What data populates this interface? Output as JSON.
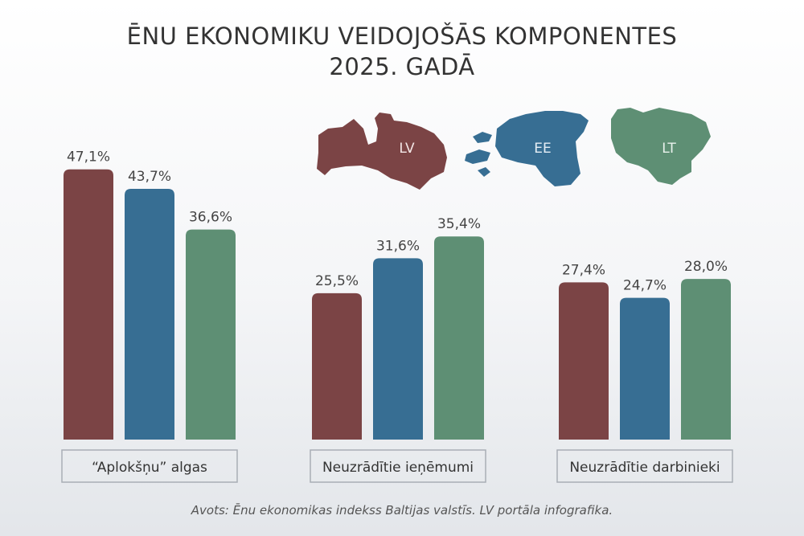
{
  "title_line1": "ĒNU EKONOMIKU VEIDOJOŠĀS KOMPONENTES",
  "title_line2": "2025. GADĀ",
  "source": "Avots: Ēnu ekonomikas indekss Baltijas valstīs. LV portāla infografika.",
  "colors": {
    "LV": "#7b4445",
    "EE": "#376e93",
    "LT": "#5e8f74"
  },
  "chart_data": {
    "type": "bar",
    "categories": [
      "“Aplokšņu” algas",
      "Neuzrādītie ieņēmumi",
      "Neuzrādītie darbinieki"
    ],
    "series": [
      {
        "name": "LV",
        "values": [
          47.1,
          25.5,
          27.4
        ],
        "labels": [
          "47,1%",
          "25,5%",
          "27,4%"
        ],
        "color": "#7b4445"
      },
      {
        "name": "EE",
        "values": [
          43.7,
          31.6,
          24.7
        ],
        "labels": [
          "43,7%",
          "31,6%",
          "24,7%"
        ],
        "color": "#376e93"
      },
      {
        "name": "LT",
        "values": [
          36.6,
          35.4,
          28.0
        ],
        "labels": [
          "36,6%",
          "35,4%",
          "28,0%"
        ],
        "color": "#5e8f74"
      }
    ],
    "unit": "%",
    "legend": "map shapes, top-right"
  }
}
